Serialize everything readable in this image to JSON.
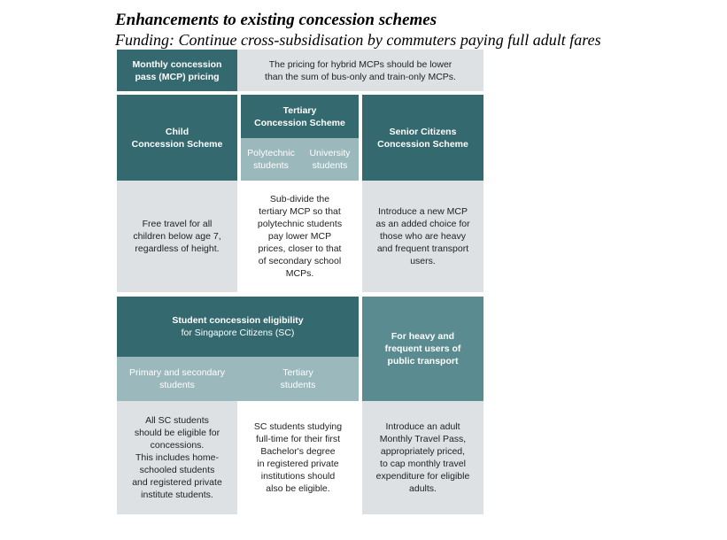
{
  "title": "Enhancements to existing concession schemes",
  "subtitle": "Funding: Continue cross-subsidisation by commuters paying full adult fares",
  "mcp": {
    "header": "Monthly concession\npass (MCP) pricing",
    "text": "The pricing for hybrid MCPs should be lower\nthan the sum of bus-only and train-only MCPs."
  },
  "child": {
    "header": "Child\nConcession Scheme",
    "text": "Free travel for all\nchildren below age 7,\nregardless of height."
  },
  "tertiary": {
    "header": "Tertiary\nConcession Scheme",
    "sub_poly": "Polytechnic\nstudents",
    "sub_uni": "University\nstudents",
    "text": "Sub-divide the\ntertiary MCP so that\npolytechnic students\npay lower MCP\nprices, closer to that\nof secondary school\nMCPs."
  },
  "senior": {
    "header": "Senior Citizens\nConcession Scheme",
    "text": "Introduce a new MCP\nas an added choice for\nthose who are heavy\nand frequent transport\nusers."
  },
  "student": {
    "header_bold": "Student concession eligibility",
    "header_normal": "for Singapore Citizens (SC)",
    "sub_primary": "Primary and secondary\nstudents",
    "sub_tertiary": "Tertiary\nstudents",
    "primary_text": "All SC students\nshould be eligible for\nconcessions.\nThis includes home-\nschooled students\nand registered private\ninstitute students.",
    "tertiary_text": "SC students studying\nfull-time for their first\nBachelor's degree\nin registered private\ninstitutions should\nalso be eligible."
  },
  "heavy": {
    "header": "For heavy and\nfrequent users of\npublic transport",
    "text": "Introduce an adult\nMonthly Travel Pass,\nappropriately priced,\nto cap monthly travel\nexpenditure for eligible\nadults."
  }
}
